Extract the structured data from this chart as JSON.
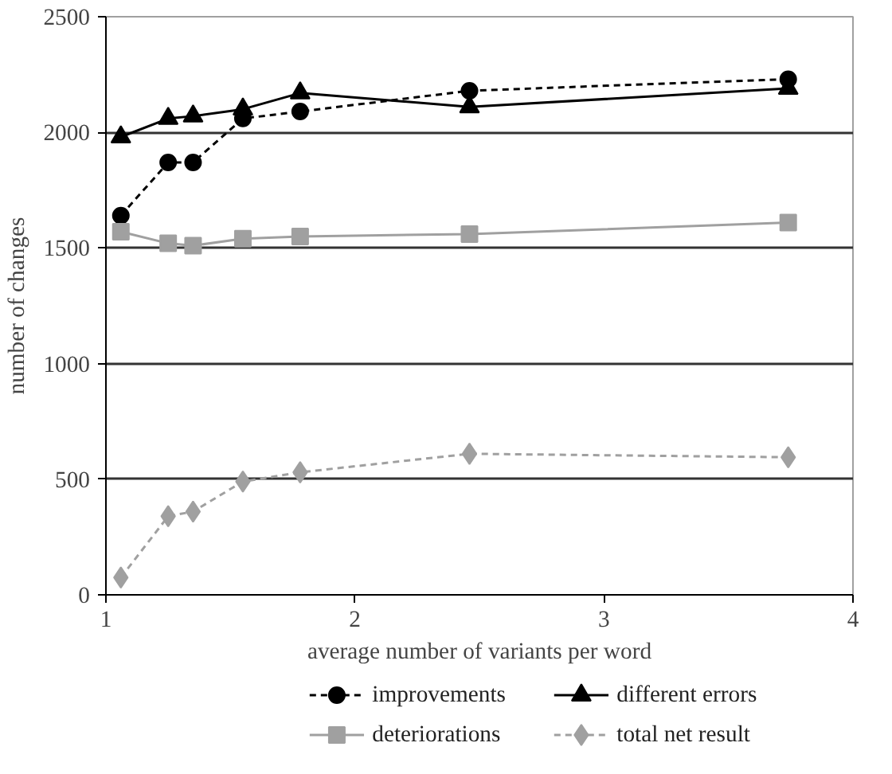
{
  "chart_data": {
    "type": "line",
    "xlabel": "average number of variants per word",
    "ylabel": "number of changes",
    "x": [
      1.06,
      1.25,
      1.35,
      1.55,
      1.78,
      2.46,
      3.74
    ],
    "xlim": [
      1,
      4
    ],
    "xticks": [
      1,
      2,
      3,
      4
    ],
    "ylim": [
      0,
      2500
    ],
    "yticks": [
      0,
      500,
      1000,
      1500,
      2000,
      2500
    ],
    "grid": "y",
    "legend": "bottom",
    "series": [
      {
        "name": "improvements",
        "color": "#000000",
        "marker": "circle",
        "line_style": "dotted",
        "values": [
          1640,
          1870,
          1870,
          2060,
          2090,
          2180,
          2230
        ]
      },
      {
        "name": "deteriorations",
        "color": "#a0a0a0",
        "marker": "square",
        "line_style": "solid",
        "values": [
          1570,
          1520,
          1510,
          1540,
          1550,
          1560,
          1610
        ]
      },
      {
        "name": "different errors",
        "color": "#000000",
        "marker": "triangle",
        "line_style": "solid",
        "values": [
          1980,
          2060,
          2070,
          2100,
          2170,
          2110,
          2190
        ]
      },
      {
        "name": "total net result",
        "color": "#a0a0a0",
        "marker": "diamond",
        "line_style": "dotted",
        "values": [
          75,
          340,
          360,
          490,
          530,
          610,
          595
        ]
      }
    ]
  }
}
